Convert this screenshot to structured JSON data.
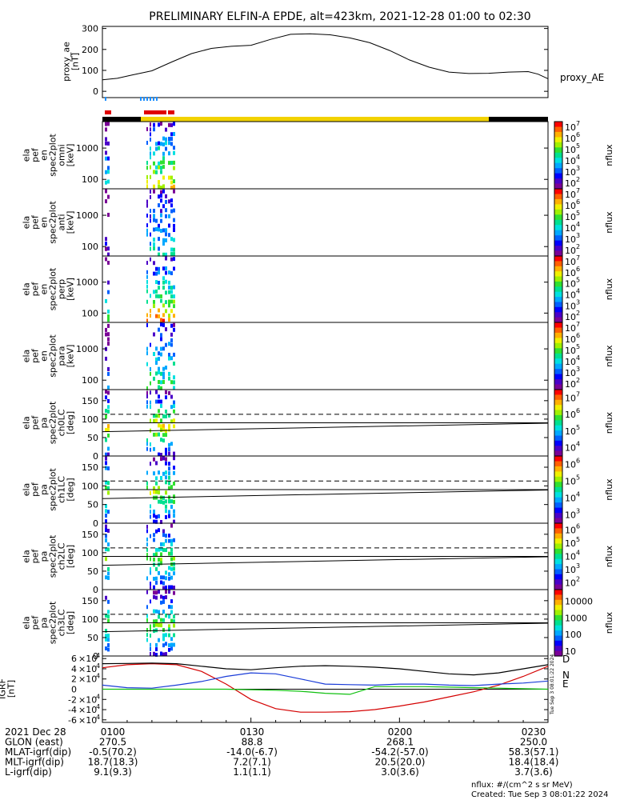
{
  "title": "PRELIMINARY ELFIN-A EPDE, alt=423km, 2021-12-28 01:00 to 02:30",
  "colors": {
    "ae_line": "#000000",
    "igrf_d": "#d40000",
    "igrf_n": "#1a3cd8",
    "igrf_e": "#10c010",
    "igrf_total": "#000000",
    "status_black": "#000000",
    "status_yellow": "#f2d200",
    "marker_blue": "#1e90ff",
    "marker_red": "#e00000"
  },
  "chart_data": [
    {
      "type": "line",
      "panel": "proxy_ae",
      "ylabel_lines": [
        "proxy_ae",
        "[nT]"
      ],
      "legend": "proxy_AE",
      "ylim": [
        -30,
        310
      ],
      "yticks": [
        "0",
        "100",
        "200",
        "300"
      ],
      "ytick_values": [
        0,
        100,
        200,
        300
      ],
      "xlim_min": [
        0,
        90
      ],
      "x_min": [
        0,
        3,
        6,
        10,
        14,
        18,
        22,
        26,
        30,
        34,
        38,
        42,
        46,
        50,
        54,
        58,
        62,
        66,
        70,
        74,
        78,
        82,
        86,
        88,
        90
      ],
      "y": [
        55,
        62,
        78,
        98,
        140,
        180,
        205,
        215,
        220,
        248,
        272,
        275,
        270,
        255,
        232,
        195,
        150,
        115,
        92,
        85,
        86,
        92,
        94,
        82,
        60
      ]
    },
    {
      "type": "heatmap",
      "panel": "en_omni",
      "ylabel_lines": [
        "ela",
        "pef",
        "en",
        "spec2plot",
        "omni",
        "[keV]"
      ],
      "yscale": "log",
      "ylim": [
        50,
        7000
      ],
      "yticks": [
        "100",
        "1000"
      ],
      "ytick_values": [
        100,
        1000
      ],
      "cbar_ticks_exp": [
        2,
        3,
        4,
        5,
        6,
        7
      ],
      "cbar_label": "nflux"
    },
    {
      "type": "heatmap",
      "panel": "en_anti",
      "ylabel_lines": [
        "ela",
        "pef",
        "en",
        "spec2plot",
        "anti",
        "[keV]"
      ],
      "yscale": "log",
      "ylim": [
        50,
        7000
      ],
      "yticks": [
        "100",
        "1000"
      ],
      "ytick_values": [
        100,
        1000
      ],
      "cbar_ticks_exp": [
        2,
        3,
        4,
        5,
        6,
        7
      ],
      "cbar_label": "nflux"
    },
    {
      "type": "heatmap",
      "panel": "en_perp",
      "ylabel_lines": [
        "ela",
        "pef",
        "en",
        "spec2plot",
        "perp",
        "[keV]"
      ],
      "yscale": "log",
      "ylim": [
        50,
        7000
      ],
      "yticks": [
        "100",
        "1000"
      ],
      "ytick_values": [
        100,
        1000
      ],
      "cbar_ticks_exp": [
        2,
        3,
        4,
        5,
        6,
        7
      ],
      "cbar_label": "nflux"
    },
    {
      "type": "heatmap",
      "panel": "en_para",
      "ylabel_lines": [
        "ela",
        "pef",
        "en",
        "spec2plot",
        "para",
        "[keV]"
      ],
      "yscale": "log",
      "ylim": [
        50,
        7000
      ],
      "yticks": [
        "100",
        "1000"
      ],
      "ytick_values": [
        100,
        1000
      ],
      "cbar_ticks_exp": [
        2,
        3,
        4,
        5,
        6,
        7
      ],
      "cbar_label": "nflux"
    },
    {
      "type": "heatmap",
      "panel": "pa_ch0",
      "ylabel_lines": [
        "ela",
        "pef",
        "pa",
        "spec2plot",
        "ch0LC",
        "[deg]"
      ],
      "ylim": [
        0,
        180
      ],
      "yticks": [
        "0",
        "50",
        "100",
        "150"
      ],
      "ytick_values": [
        0,
        50,
        100,
        150
      ],
      "cbar_ticks_exp": [
        4,
        5,
        6,
        7
      ],
      "cbar_label": "nflux"
    },
    {
      "type": "heatmap",
      "panel": "pa_ch1",
      "ylabel_lines": [
        "ela",
        "pef",
        "pa",
        "spec2plot",
        "ch1LC",
        "[deg]"
      ],
      "ylim": [
        0,
        180
      ],
      "yticks": [
        "0",
        "50",
        "100",
        "150"
      ],
      "ytick_values": [
        0,
        50,
        100,
        150
      ],
      "cbar_ticks_exp": [
        3,
        4,
        5,
        6
      ],
      "cbar_label": "nflux"
    },
    {
      "type": "heatmap",
      "panel": "pa_ch2",
      "ylabel_lines": [
        "ela",
        "pef",
        "pa",
        "spec2plot",
        "ch2LC",
        "[deg]"
      ],
      "ylim": [
        0,
        180
      ],
      "yticks": [
        "0",
        "50",
        "100",
        "150"
      ],
      "ytick_values": [
        0,
        50,
        100,
        150
      ],
      "cbar_ticks_exp": [
        2,
        3,
        4,
        5,
        6
      ],
      "cbar_label": "nflux"
    },
    {
      "type": "heatmap",
      "panel": "pa_ch3",
      "ylabel_lines": [
        "ela",
        "pef",
        "pa",
        "spec2plot",
        "ch3LC",
        "[deg]"
      ],
      "ylim": [
        0,
        180
      ],
      "yticks": [
        "0",
        "50",
        "100",
        "150"
      ],
      "ytick_values": [
        0,
        50,
        100,
        150
      ],
      "cbar_ticks_lin": [
        "10",
        "100",
        "1000",
        "10000"
      ],
      "cbar_label": "nflux"
    },
    {
      "type": "line",
      "panel": "igrf",
      "ylabel_lines": [
        "IGRF",
        "[nT]"
      ],
      "ylim": [
        -65000,
        65000
      ],
      "yticks_mant": [
        "-6",
        "-4",
        "-2",
        "0",
        "2",
        "4",
        "6"
      ],
      "ytick_values": [
        -60000,
        -40000,
        -20000,
        0,
        20000,
        40000,
        60000
      ],
      "legend": [
        "D",
        "N",
        "E"
      ],
      "x_min": [
        0,
        5,
        10,
        15,
        20,
        25,
        30,
        35,
        40,
        45,
        50,
        55,
        60,
        65,
        70,
        75,
        80,
        85,
        90
      ],
      "series": [
        {
          "name": "D",
          "values": [
            42000,
            48000,
            50000,
            48000,
            35000,
            10000,
            -20000,
            -38000,
            -45000,
            -45000,
            -44000,
            -40000,
            -33000,
            -25000,
            -15000,
            -5000,
            8000,
            25000,
            45000
          ]
        },
        {
          "name": "N",
          "values": [
            8000,
            3000,
            2000,
            8000,
            15000,
            25000,
            32000,
            30000,
            20000,
            10000,
            9000,
            8000,
            10000,
            10000,
            8000,
            7000,
            10000,
            12000,
            16000
          ]
        },
        {
          "name": "E",
          "values": [
            0,
            0,
            0,
            0,
            0,
            0,
            -1000,
            -2000,
            -4000,
            -8000,
            -10000,
            5000,
            5000,
            5000,
            4000,
            3000,
            2000,
            1000,
            0
          ]
        },
        {
          "name": "",
          "values": [
            50000,
            50500,
            51000,
            50000,
            45000,
            40000,
            38000,
            42000,
            45000,
            46000,
            45000,
            43000,
            40000,
            35000,
            30000,
            28000,
            32000,
            40000,
            48000
          ]
        }
      ]
    }
  ],
  "orbit_table": {
    "rows": [
      {
        "label": "2021 Dec 28",
        "values": [
          "0100",
          "0130",
          "0200",
          "0230"
        ]
      },
      {
        "label": "GLON (east)",
        "values": [
          "270.5",
          "88.8",
          "268.1",
          "250.0"
        ]
      },
      {
        "label": "MLAT-igrf(dip)",
        "values": [
          "-0.5(70.2)",
          "-14.0(-6.7)",
          "-54.2(-57.0)",
          "58.3(57.1)"
        ]
      },
      {
        "label": "MLT-igrf(dip)",
        "values": [
          "18.7(18.3)",
          "7.2(7.1)",
          "20.5(20.0)",
          "18.4(18.4)"
        ]
      },
      {
        "label": "L-igrf(dip)",
        "values": [
          "9.1(9.3)",
          "1.1(1.1)",
          "3.0(3.6)",
          "3.7(3.6)"
        ]
      }
    ]
  },
  "footer": {
    "units": "nflux: #/(cm^2 s sr MeV)",
    "created": "Created: Tue Sep  3 08:01:22 2024",
    "side_stamp": "Tue Sep  3 08:01:22 2024"
  }
}
